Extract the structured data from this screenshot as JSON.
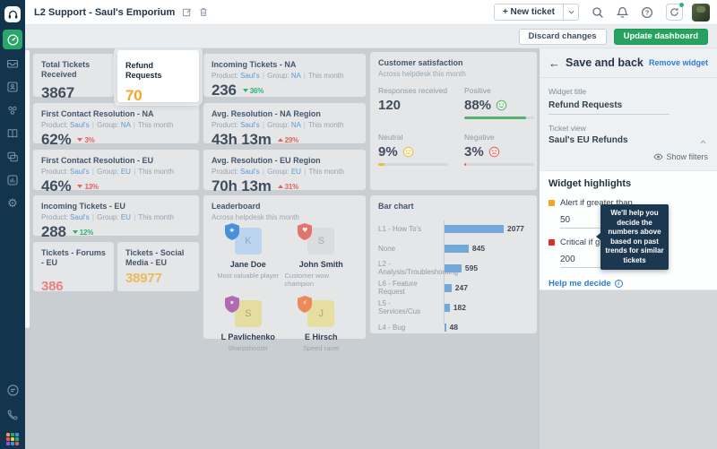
{
  "header": {
    "title": "L2 Support - Saul's Emporium",
    "new_ticket_label": "+ New ticket"
  },
  "toolbar": {
    "discard_label": "Discard changes",
    "update_label": "Update dashboard"
  },
  "icons": {
    "rail": [
      "headset-logo-icon",
      "dashboard-icon",
      "tickets-icon",
      "contacts-icon",
      "social-icon",
      "solutions-icon",
      "forums-icon",
      "analytics-icon",
      "admin-gear-icon",
      "chat-icon",
      "phone-icon",
      "apps-grid-icon"
    ],
    "header": [
      "edit-icon",
      "trash-icon",
      "search-icon",
      "bell-icon",
      "help-icon",
      "whats-new-icon"
    ]
  },
  "labels": {
    "product": "Product:",
    "group": "Group:",
    "sep": "|"
  },
  "widgets": {
    "total": {
      "title": "Total Tickets Received",
      "value": "3867"
    },
    "refund": {
      "title": "Refund Requests",
      "value": "70",
      "value_color": "#f5a623"
    },
    "incoming_na": {
      "title": "Incoming Tickets - NA",
      "product": "Saul's",
      "group": "NA",
      "period": "This month",
      "value": "236",
      "trend": "36%",
      "trend_dir": "down",
      "trend_sentiment": "good"
    },
    "fcr_na": {
      "title": "First Contact Resolution - NA",
      "product": "Saul's",
      "group": "NA",
      "period": "This month",
      "value": "62%",
      "trend": "3%",
      "trend_dir": "down",
      "trend_sentiment": "bad"
    },
    "fcr_eu": {
      "title": "First Contact Resolution - EU",
      "product": "Saul's",
      "group": "EU",
      "period": "This month",
      "value": "46%",
      "trend": "13%",
      "trend_dir": "down",
      "trend_sentiment": "bad"
    },
    "incoming_eu": {
      "title": "Incoming Tickets - EU",
      "product": "Saul's",
      "group": "EU",
      "period": "This month",
      "value": "288",
      "trend": "12%",
      "trend_dir": "down",
      "trend_sentiment": "good"
    },
    "avg_na": {
      "title": "Avg. Resolution - NA Region",
      "product": "Saul's",
      "group": "NA",
      "period": "This month",
      "value": "43h 13m",
      "trend": "29%",
      "trend_dir": "up",
      "trend_sentiment": "bad"
    },
    "avg_eu": {
      "title": "Avg. Resolution - EU Region",
      "product": "Saul's",
      "group": "EU",
      "period": "This month",
      "value": "70h 13m",
      "trend": "31%",
      "trend_dir": "up",
      "trend_sentiment": "bad"
    },
    "forums_eu": {
      "title": "Tickets - Forums - EU",
      "value": "386",
      "value_color": "#e8827c"
    },
    "social_eu": {
      "title": "Tickets - Social Media - EU",
      "value": "38977",
      "value_color": "#ecba5a"
    }
  },
  "satisfaction": {
    "title": "Customer satisfaction",
    "subtitle": "Across helpdesk this month",
    "responses_label": "Responses received",
    "responses_value": "120",
    "positive": {
      "label": "Positive",
      "value": "88%",
      "pct": 88,
      "color": "#57b06b"
    },
    "neutral": {
      "label": "Neutral",
      "value": "9%",
      "pct": 9,
      "color": "#e3c13f"
    },
    "negative": {
      "label": "Negative",
      "value": "3%",
      "pct": 3,
      "color": "#e2635b"
    }
  },
  "leaderboard": {
    "title": "Leaderboard",
    "subtitle": "Across helpdesk this month",
    "entries": [
      {
        "name": "Jane Doe",
        "caption": "Most valuable player",
        "initial": "K",
        "glyph": "★",
        "shield_color": "#4a90d9",
        "avatar_bg": "#bdd4ee",
        "initial_color": "#89a7c9"
      },
      {
        "name": "John Smith",
        "caption": "Customer wow champion",
        "initial": "S",
        "glyph": "♥",
        "shield_color": "#e2736d",
        "avatar_bg": "#dadcde",
        "initial_color": "#a6abb1"
      },
      {
        "name": "L Pavlichenko",
        "caption": "Sharpshooter",
        "initial": "S",
        "glyph": "✶",
        "shield_color": "#b06ab3",
        "avatar_bg": "#e4dd9f",
        "initial_color": "#b1a75e"
      },
      {
        "name": "E Hirsch",
        "caption": "Speed racer",
        "initial": "J",
        "glyph": "⚡",
        "shield_color": "#ed8a5c",
        "avatar_bg": "#e6dfa0",
        "initial_color": "#b4aa60"
      }
    ]
  },
  "chart_data": {
    "type": "bar",
    "title": "Bar chart",
    "orientation": "horizontal",
    "categories": [
      "L1 - How To's",
      "None",
      "L2 - Analysis/Troubleshooting",
      "L6 - Feature Request",
      "L5 - Services/Cus",
      "L4 - Bug"
    ],
    "values": [
      2077,
      845,
      595,
      247,
      182,
      48
    ],
    "bar_color": "#73a9d8",
    "xlim": [
      0,
      2200
    ],
    "grid": false,
    "legend": false
  },
  "panel": {
    "back_label": "Save and back",
    "remove_label": "Remove widget",
    "widget_title_label": "Widget title",
    "widget_title_value": "Refund Requests",
    "ticket_view_label": "Ticket view",
    "ticket_view_value": "Saul's EU Refunds",
    "show_filters_label": "Show filters",
    "highlights_title": "Widget highlights",
    "alert_label": "Alert if greater than",
    "alert_value": "50",
    "critical_label": "Critical if greater than",
    "critical_value": "200",
    "help_label": "Help me decide",
    "info_glyph": "i",
    "tooltip": "We'll help you decide the numbers above based on past trends for similar tickets"
  }
}
